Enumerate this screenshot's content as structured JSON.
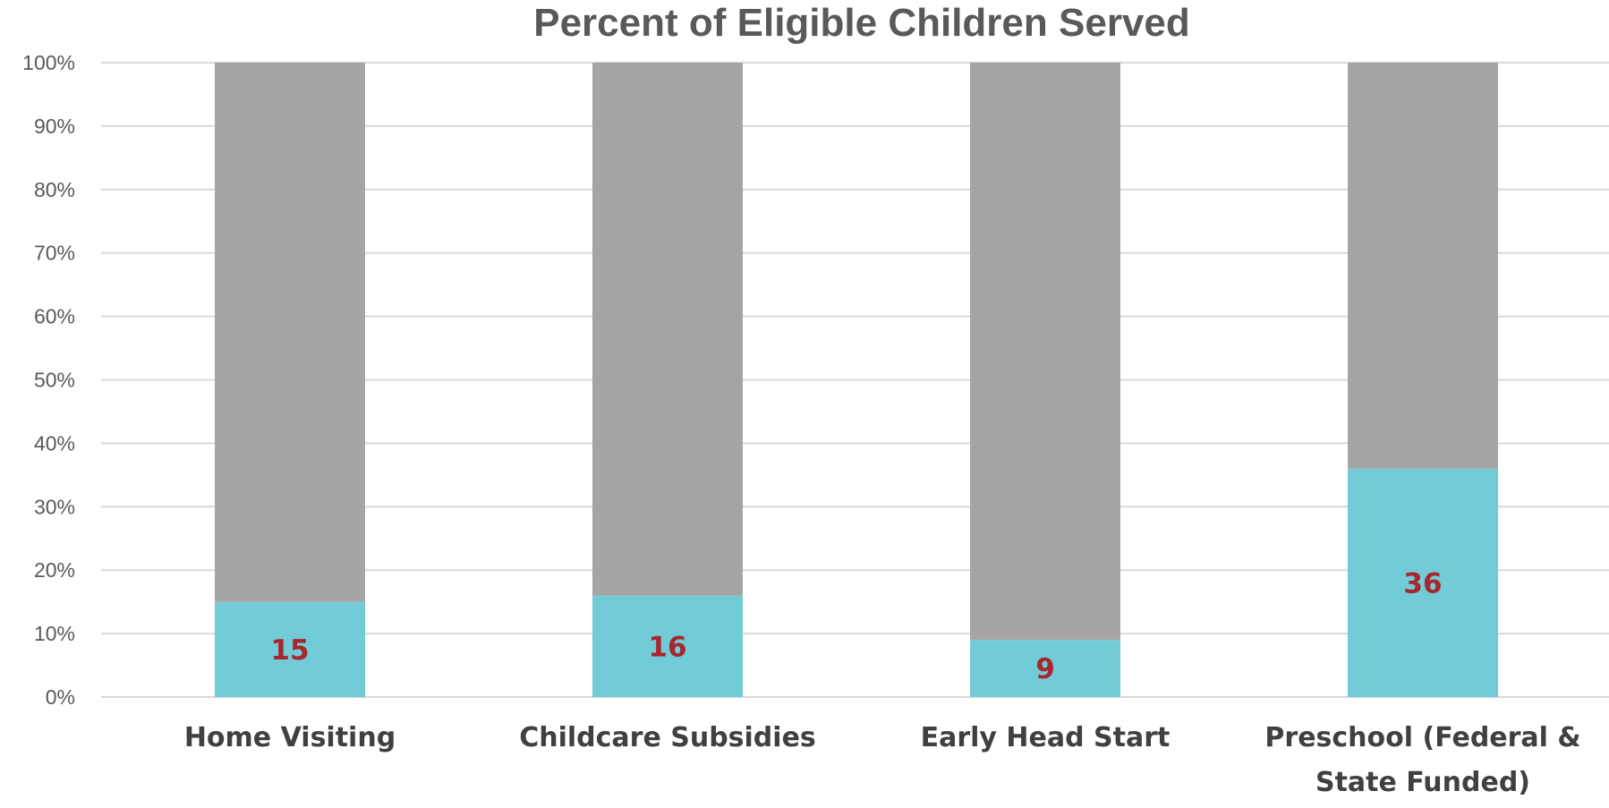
{
  "chart_data": {
    "type": "bar",
    "stacked": true,
    "percent_stacked": true,
    "title": "Percent of Eligible Children Served",
    "xlabel": "",
    "ylabel": "",
    "ylim": [
      0,
      100
    ],
    "yticks": [
      "0%",
      "10%",
      "20%",
      "30%",
      "40%",
      "50%",
      "60%",
      "70%",
      "80%",
      "90%",
      "100%"
    ],
    "grid": true,
    "legend": "none",
    "categories": [
      [
        "Home Visiting"
      ],
      [
        "Childcare Subsidies"
      ],
      [
        "Early Head Start"
      ],
      [
        "Preschool (Federal &",
        "State Funded)"
      ]
    ],
    "series": [
      {
        "values": [
          15,
          16,
          9,
          36
        ],
        "color": "#72ccd8"
      },
      {
        "values": [
          85,
          84,
          91,
          64
        ],
        "color": "#a5a5a5"
      }
    ],
    "data_labels": [
      "15",
      "16",
      "9",
      "36"
    ],
    "data_label_color": "#a8262d"
  }
}
